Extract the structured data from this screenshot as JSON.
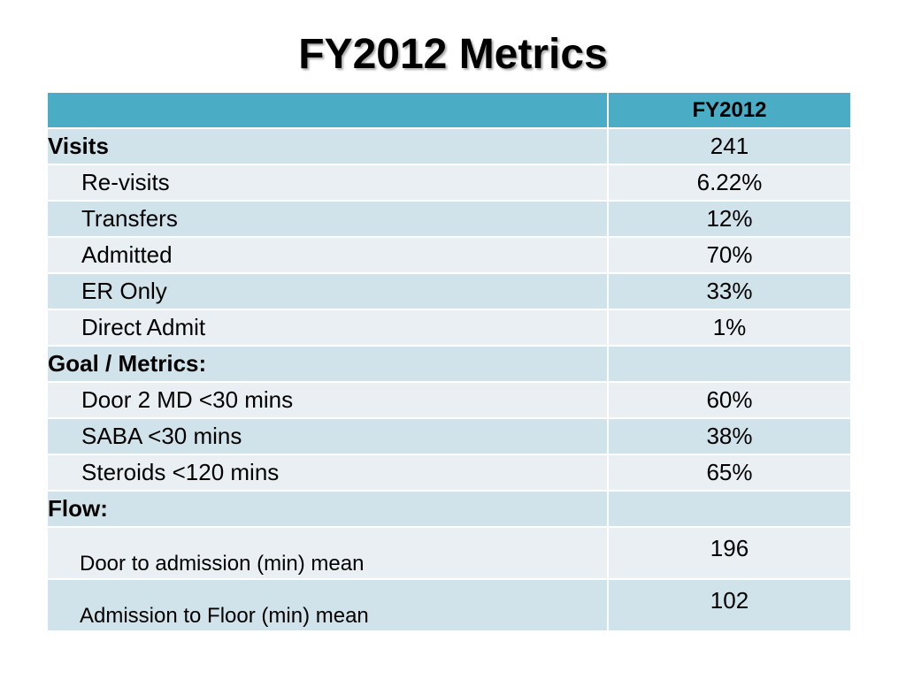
{
  "title": "FY2012 Metrics",
  "table": {
    "header": "FY2012",
    "sections": [
      {
        "heading": "Visits",
        "value": "241",
        "rows": [
          {
            "label": "Re-visits",
            "value": "6.22%"
          },
          {
            "label": "Transfers",
            "value": "12%"
          },
          {
            "label": "Admitted",
            "value": "70%"
          },
          {
            "label": "ER Only",
            "value": "33%"
          },
          {
            "label": "Direct Admit",
            "value": "1%"
          }
        ]
      },
      {
        "heading": "Goal / Metrics:",
        "rows": [
          {
            "label": "Door 2 MD <30 mins",
            "value": "60%"
          },
          {
            "label": "SABA <30 mins",
            "value": "38%"
          },
          {
            "label": "Steroids <120 mins",
            "value": "65%"
          }
        ]
      },
      {
        "heading": "Flow:",
        "rows": [
          {
            "label": "Door to admission (min) mean",
            "value": "196"
          },
          {
            "label": "Admission to Floor (min) mean",
            "value": "102"
          }
        ]
      }
    ]
  }
}
